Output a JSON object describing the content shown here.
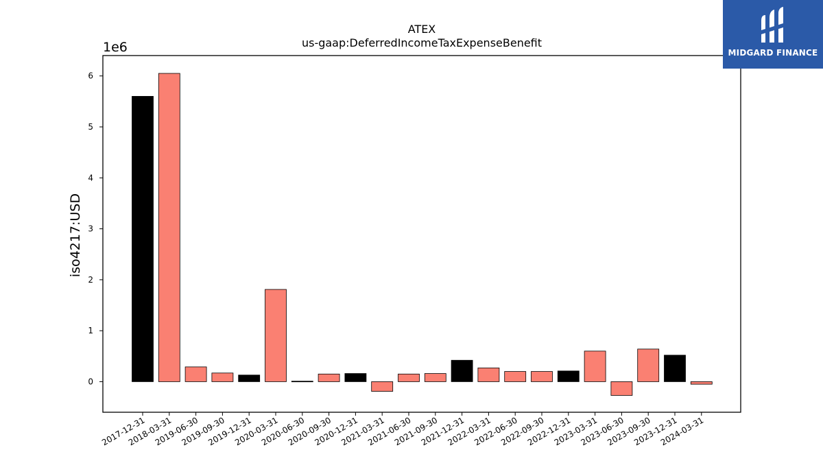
{
  "logo": {
    "text": "MIDGARD FINANCE",
    "background": "#2b5aa8"
  },
  "chart_data": {
    "type": "bar",
    "title": "ATEX",
    "subtitle": "us-gaap:DeferredIncomeTaxExpenseBenefit",
    "xlabel": "",
    "ylabel": "iso4217:USD",
    "y_offset_label": "1e6",
    "ylim": [
      -0.6,
      6.4
    ],
    "yticks": [
      0,
      1,
      2,
      3,
      4,
      5,
      6
    ],
    "grid": false,
    "legend": "none",
    "colors": {
      "annual": "#000000",
      "quarterly": "#fa8072"
    },
    "categories": [
      "2017-12-31",
      "2018-03-31",
      "2019-06-30",
      "2019-09-30",
      "2019-12-31",
      "2020-03-31",
      "2020-06-30",
      "2020-09-30",
      "2020-12-31",
      "2021-03-31",
      "2021-06-30",
      "2021-09-30",
      "2021-12-31",
      "2022-03-31",
      "2022-06-30",
      "2022-09-30",
      "2022-12-31",
      "2023-03-31",
      "2023-06-30",
      "2023-09-30",
      "2023-12-31",
      "2024-03-31"
    ],
    "values": [
      5.6,
      6.05,
      0.29,
      0.17,
      0.13,
      1.81,
      0.01,
      0.15,
      0.16,
      -0.19,
      0.15,
      0.16,
      0.42,
      0.27,
      0.2,
      0.2,
      0.21,
      0.6,
      -0.27,
      0.64,
      0.52,
      -0.05
    ],
    "bar_colors": [
      "annual",
      "quarterly",
      "quarterly",
      "quarterly",
      "annual",
      "quarterly",
      "annual",
      "quarterly",
      "annual",
      "quarterly",
      "quarterly",
      "quarterly",
      "annual",
      "quarterly",
      "quarterly",
      "quarterly",
      "annual",
      "quarterly",
      "quarterly",
      "quarterly",
      "annual",
      "quarterly"
    ]
  }
}
